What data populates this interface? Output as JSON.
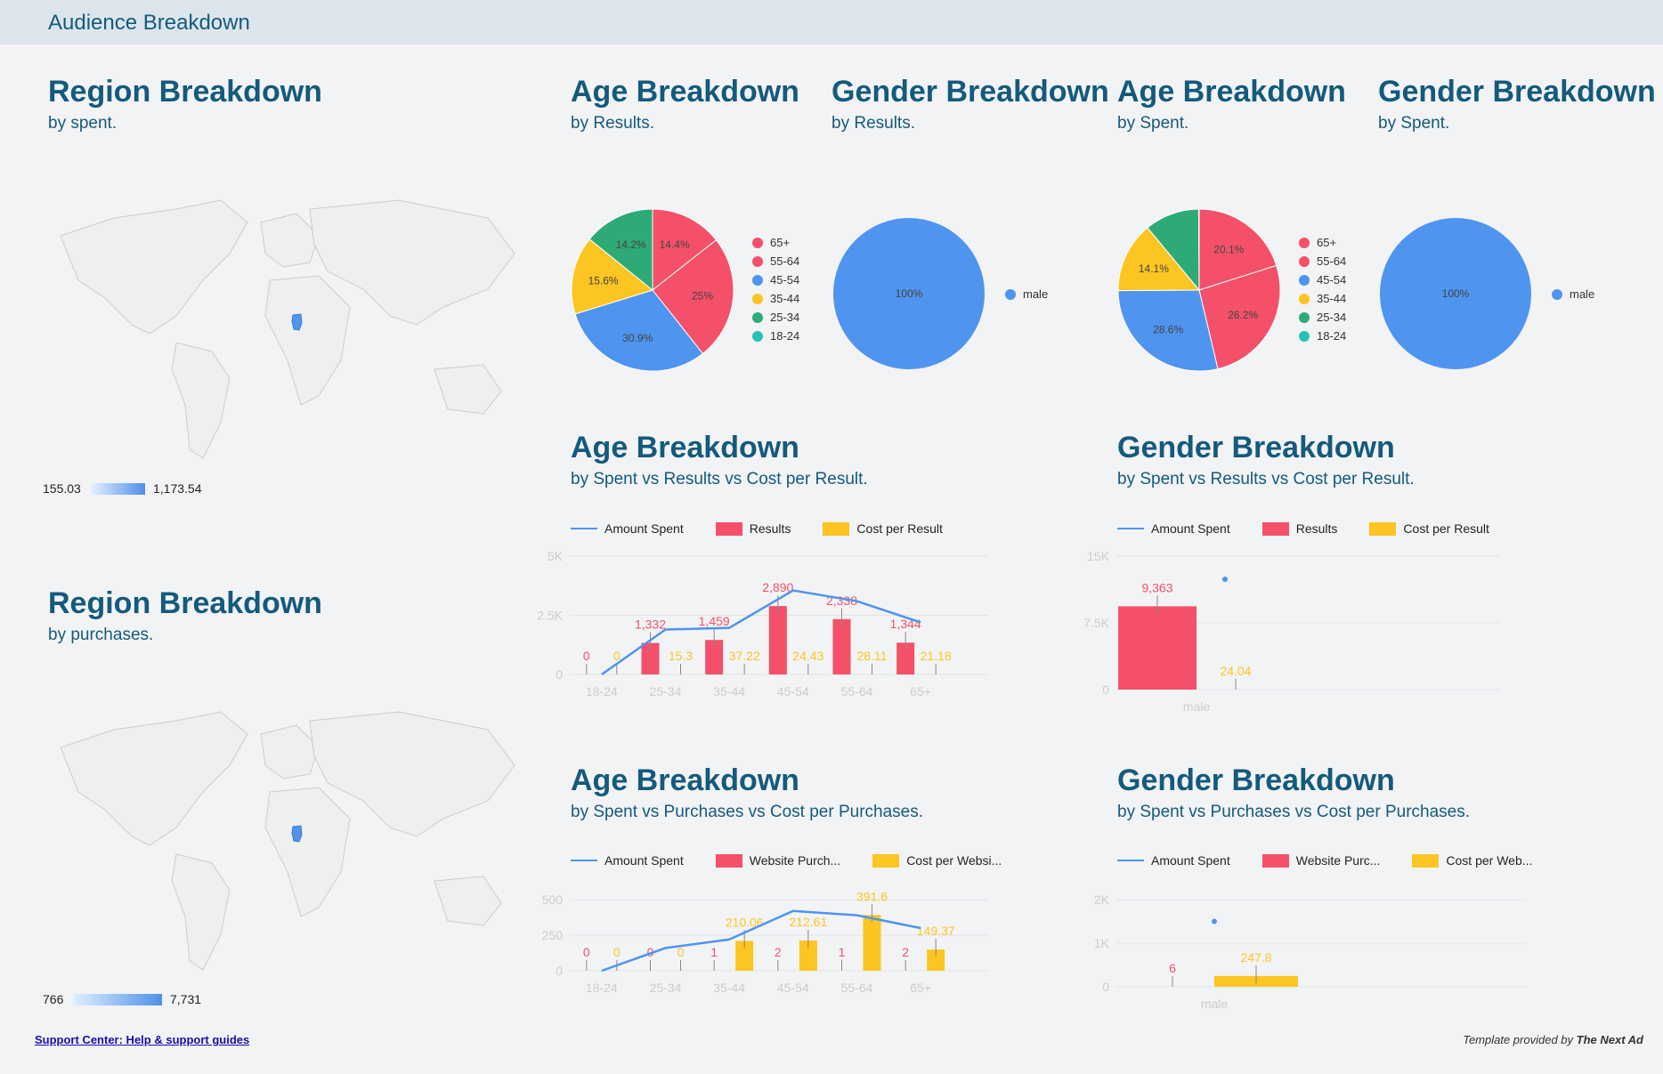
{
  "header": {
    "title": "Audience Breakdown"
  },
  "region_spent": {
    "title": "Region Breakdown",
    "subtitle": "by spent.",
    "scale_min": "155.03",
    "scale_max": "1,173.54"
  },
  "region_purchases": {
    "title": "Region Breakdown",
    "subtitle": "by purchases.",
    "scale_min": "766",
    "scale_max": "7,731"
  },
  "age_results": {
    "title": "Age Breakdown",
    "subtitle": "by Results."
  },
  "gender_results": {
    "title": "Gender Breakdown",
    "subtitle": "by Results."
  },
  "age_spent": {
    "title": "Age Breakdown",
    "subtitle": "by Spent."
  },
  "gender_spent": {
    "title": "Gender Breakdown",
    "subtitle": "by Spent."
  },
  "age_combo1": {
    "title": "Age Breakdown",
    "subtitle": "by Spent vs Results vs Cost per Result."
  },
  "gender_combo1": {
    "title": "Gender Breakdown",
    "subtitle": "by Spent vs Results vs Cost per Result."
  },
  "age_combo2": {
    "title": "Age Breakdown",
    "subtitle": "by Spent vs Purchases vs Cost per Purchases."
  },
  "gender_combo2": {
    "title": "Gender Breakdown",
    "subtitle": "by Spent vs Purchases vs Cost per Purchases."
  },
  "legends": {
    "amount_spent": "Amount Spent",
    "results": "Results",
    "cost_per_result": "Cost per Result",
    "website_purch_age": "Website Purch...",
    "cost_per_websi_age": "Cost per Websi...",
    "website_purc_gender": "Website Purc...",
    "cost_per_web_gender": "Cost per Web..."
  },
  "footer": {
    "link": "Support Center: Help & support guides",
    "credit_prefix": "Template provided by ",
    "credit_brand": "The Next Ad"
  },
  "colors": {
    "blue": "#4f94ee",
    "red": "#f4506a",
    "yellow": "#fcc521",
    "green": "#2eaa76",
    "teal": "#26c2b6",
    "title": "#145a7c"
  },
  "chart_data": [
    {
      "id": "pie_age_results",
      "type": "pie",
      "legend_placement": "right",
      "slices": [
        {
          "label": "65+",
          "value": 14.4,
          "text": "14.4%",
          "color": "#f4506a"
        },
        {
          "label": "55-64",
          "value": 25.0,
          "text": "25%",
          "color": "#f4506a"
        },
        {
          "label": "45-54",
          "value": 30.9,
          "text": "30.9%",
          "color": "#4f94ee"
        },
        {
          "label": "35-44",
          "value": 15.6,
          "text": "15.6%",
          "color": "#fcc521"
        },
        {
          "label": "25-34",
          "value": 14.2,
          "text": "14.2%",
          "color": "#2eaa76"
        },
        {
          "label": "18-24",
          "value": 0,
          "text": "",
          "color": "#26c2b6"
        }
      ]
    },
    {
      "id": "pie_gender_results",
      "type": "pie",
      "legend_placement": "right",
      "slices": [
        {
          "label": "male",
          "value": 100,
          "text": "100%",
          "color": "#4f94ee"
        }
      ]
    },
    {
      "id": "pie_age_spent",
      "type": "pie",
      "legend_placement": "right",
      "slices": [
        {
          "label": "65+",
          "value": 20.1,
          "text": "20.1%",
          "color": "#f4506a"
        },
        {
          "label": "55-64",
          "value": 26.2,
          "text": "26.2%",
          "color": "#f4506a"
        },
        {
          "label": "45-54",
          "value": 28.6,
          "text": "28.6%",
          "color": "#4f94ee"
        },
        {
          "label": "35-44",
          "value": 14.1,
          "text": "14.1%",
          "color": "#fcc521"
        },
        {
          "label": "25-34",
          "value": 10.9,
          "text": "",
          "color": "#2eaa76"
        },
        {
          "label": "18-24",
          "value": 0.1,
          "text": "",
          "color": "#26c2b6"
        }
      ]
    },
    {
      "id": "pie_gender_spent",
      "type": "pie",
      "legend_placement": "right",
      "slices": [
        {
          "label": "male",
          "value": 100,
          "text": "100%",
          "color": "#4f94ee"
        }
      ]
    },
    {
      "id": "combo_age_results",
      "type": "bar",
      "categories": [
        "18-24",
        "25-34",
        "35-44",
        "45-54",
        "55-64",
        "65+"
      ],
      "yticks": [
        "5K",
        "2.5K",
        "0"
      ],
      "ylim": [
        0,
        5000
      ],
      "series": [
        {
          "name": "Amount Spent",
          "kind": "line",
          "values": [
            0,
            1900,
            1970,
            3550,
            3100,
            2200
          ]
        },
        {
          "name": "Results",
          "kind": "bar",
          "values": [
            0,
            1332,
            1459,
            2890,
            2338,
            1344
          ],
          "labels": [
            "0",
            "1,332",
            "1,459",
            "2,890",
            "2,338",
            "1,344"
          ]
        },
        {
          "name": "Cost per Result",
          "kind": "bar",
          "values": [
            0,
            15.3,
            37.22,
            24.43,
            28.11,
            21.18
          ],
          "labels": [
            "0",
            "15.3",
            "37.22",
            "24.43",
            "28.11",
            "21.18"
          ]
        }
      ]
    },
    {
      "id": "combo_gender_results",
      "type": "bar",
      "categories": [
        "male"
      ],
      "yticks": [
        "15K",
        "7.5K",
        "0"
      ],
      "ylim": [
        0,
        15000
      ],
      "series": [
        {
          "name": "Amount Spent",
          "kind": "line",
          "values": [
            12400
          ]
        },
        {
          "name": "Results",
          "kind": "bar",
          "values": [
            9363
          ],
          "labels": [
            "9,363"
          ]
        },
        {
          "name": "Cost per Result",
          "kind": "bar",
          "values": [
            24.04
          ],
          "labels": [
            "24.04"
          ]
        }
      ]
    },
    {
      "id": "combo_age_purchases",
      "type": "bar",
      "categories": [
        "18-24",
        "25-34",
        "35-44",
        "45-54",
        "55-64",
        "65+"
      ],
      "yticks": [
        "500",
        "250",
        "0"
      ],
      "ylim": [
        0,
        500
      ],
      "series": [
        {
          "name": "Amount Spent",
          "kind": "line",
          "values": [
            0,
            160,
            220,
            420,
            390,
            300
          ]
        },
        {
          "name": "Website Purchases",
          "kind": "bar",
          "values": [
            0,
            0,
            1,
            2,
            1,
            2
          ],
          "labels": [
            "0",
            "0",
            "1",
            "2",
            "1",
            "2"
          ]
        },
        {
          "name": "Cost per Website Purchase",
          "kind": "bar",
          "values": [
            0,
            0,
            210.06,
            212.61,
            391.6,
            149.37
          ],
          "labels": [
            "0",
            "0",
            "210.06",
            "212.61",
            "391.6",
            "149.37"
          ]
        }
      ]
    },
    {
      "id": "combo_gender_purchases",
      "type": "bar",
      "categories": [
        "male"
      ],
      "yticks": [
        "2K",
        "1K",
        "0"
      ],
      "ylim": [
        0,
        2000
      ],
      "series": [
        {
          "name": "Amount Spent",
          "kind": "line",
          "values": [
            1500
          ]
        },
        {
          "name": "Website Purchases",
          "kind": "bar",
          "values": [
            6
          ],
          "labels": [
            "6"
          ]
        },
        {
          "name": "Cost per Website Purchase",
          "kind": "bar",
          "values": [
            247.8
          ],
          "labels": [
            "247.8"
          ]
        }
      ]
    }
  ]
}
